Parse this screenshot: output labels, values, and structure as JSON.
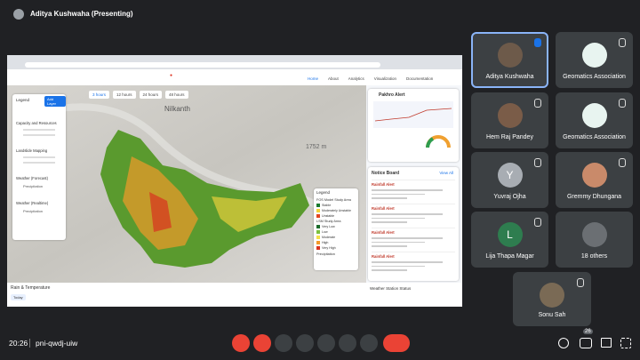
{
  "header": {
    "presenter": "Aditya Kushwaha (Presenting)"
  },
  "shared_screen": {
    "nav": [
      "Home",
      "About",
      "Analytics",
      "Visualization",
      "Documentation"
    ],
    "time_tabs": [
      "3 hours",
      "12 hours",
      "24 hours",
      "48 hours"
    ],
    "place_label": "Nilkanth",
    "elevation": "1752 m",
    "layers_panel": {
      "title": "Legend",
      "button": "Add Layer",
      "groups": [
        "Capacity and Resources",
        "Landslide Mapping",
        "Weather (Forecast)",
        "Weather (Realtime)"
      ],
      "item": "Precipitation"
    },
    "map_legend": {
      "title": "Legend",
      "sections": [
        {
          "name": "FOS Model Study Area",
          "items": [
            {
              "label": "Stable",
              "color": "#1b7a2e"
            },
            {
              "label": "Moderately Unstable",
              "color": "#f2d43a"
            },
            {
              "label": "Unstable",
              "color": "#e2451f"
            }
          ]
        },
        {
          "name": "LSM Study Area",
          "items": [
            {
              "label": "Very Low",
              "color": "#1b6b2a"
            },
            {
              "label": "Low",
              "color": "#7cc13e"
            },
            {
              "label": "Moderate",
              "color": "#f4e04a"
            },
            {
              "label": "High",
              "color": "#f39a2b"
            },
            {
              "label": "Very High",
              "color": "#d9321f"
            }
          ]
        }
      ],
      "footer": "Precipitation"
    },
    "alert_panel": {
      "title": "Pakhro Alert"
    },
    "notice_board": {
      "title": "Notice Board",
      "link": "View All",
      "items": [
        "Rainfall Alert",
        "Rainfall Alert",
        "Rainfall Alert",
        "Rainfall Alert"
      ]
    },
    "bottom": {
      "rain_title": "Rain & Temperature",
      "tab": "Today",
      "station": "Weather Station Status"
    }
  },
  "participants": [
    {
      "name": "Aditya Kushwaha"
    },
    {
      "name": "Geomatics Association"
    },
    {
      "name": "Hem Raj Pandey"
    },
    {
      "name": "Geomatics Association"
    },
    {
      "name": "Yuvraj Ojha",
      "initial": "Y"
    },
    {
      "name": "Gremmy Dhungana"
    },
    {
      "name": "Lija Thapa Magar",
      "initial": "L"
    },
    {
      "name": "18 others"
    },
    {
      "name": "Sonu Sah"
    }
  ],
  "footer": {
    "time": "20:26",
    "meeting_code": "pni-qwdj-uiw",
    "participant_count": 26
  }
}
